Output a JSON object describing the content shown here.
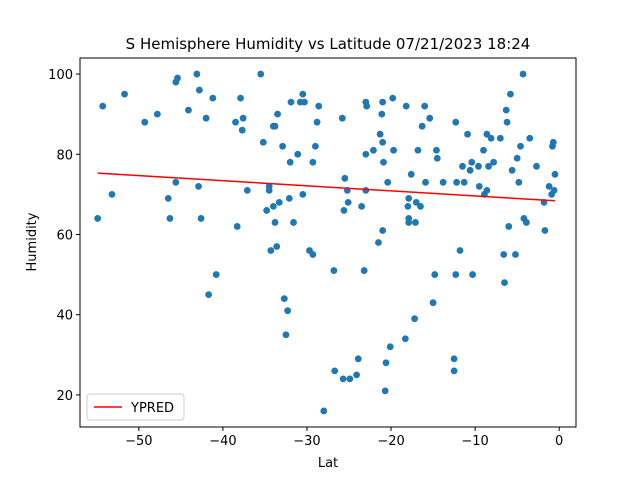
{
  "chart_data": {
    "type": "scatter",
    "title": "S Hemisphere Humidity vs Latitude 07/21/2023 18:24",
    "xlabel": "Lat",
    "ylabel": "Humidity",
    "xlim": [
      -57,
      2
    ],
    "ylim": [
      12,
      104
    ],
    "xticks": [
      -50,
      -40,
      -30,
      -20,
      -10,
      0
    ],
    "yticks": [
      20,
      40,
      60,
      80,
      100
    ],
    "grid": false,
    "legend": {
      "placement": "lower-left",
      "entries": [
        "YPRED"
      ]
    },
    "colors": {
      "points": "#1f77b4",
      "line": "#ff0000",
      "axis": "#000000"
    },
    "series": [
      {
        "kind": "points",
        "points": [
          [
            -54.9,
            64
          ],
          [
            -54.3,
            92
          ],
          [
            -53.2,
            70
          ],
          [
            -51.7,
            95
          ],
          [
            -49.3,
            88
          ],
          [
            -47.8,
            90
          ],
          [
            -46.5,
            69
          ],
          [
            -46.3,
            64
          ],
          [
            -45.6,
            98
          ],
          [
            -45.4,
            99
          ],
          [
            -45.6,
            73
          ],
          [
            -44.1,
            91
          ],
          [
            -43.1,
            100
          ],
          [
            -42.8,
            96
          ],
          [
            -42.9,
            72
          ],
          [
            -42.6,
            64
          ],
          [
            -42.0,
            89
          ],
          [
            -41.7,
            45
          ],
          [
            -41.2,
            94
          ],
          [
            -40.8,
            50
          ],
          [
            -38.5,
            88
          ],
          [
            -38.3,
            62
          ],
          [
            -37.9,
            94
          ],
          [
            -37.7,
            86
          ],
          [
            -37.6,
            89
          ],
          [
            -37.1,
            71
          ],
          [
            -35.5,
            100
          ],
          [
            -35.2,
            83
          ],
          [
            -34.8,
            66
          ],
          [
            -34.5,
            72
          ],
          [
            -34.5,
            71
          ],
          [
            -34.3,
            56
          ],
          [
            -34.0,
            87
          ],
          [
            -33.8,
            87
          ],
          [
            -34.0,
            67
          ],
          [
            -33.8,
            63
          ],
          [
            -33.6,
            57
          ],
          [
            -33.5,
            90
          ],
          [
            -33.3,
            68
          ],
          [
            -32.9,
            82
          ],
          [
            -32.7,
            44
          ],
          [
            -32.5,
            35
          ],
          [
            -32.3,
            41
          ],
          [
            -32.1,
            69
          ],
          [
            -32.0,
            78
          ],
          [
            -31.9,
            93
          ],
          [
            -31.6,
            63
          ],
          [
            -31.1,
            80
          ],
          [
            -30.8,
            93
          ],
          [
            -30.5,
            95
          ],
          [
            -30.5,
            70
          ],
          [
            -30.3,
            93
          ],
          [
            -29.7,
            56
          ],
          [
            -29.3,
            55
          ],
          [
            -29.3,
            78
          ],
          [
            -29.0,
            82
          ],
          [
            -28.8,
            88
          ],
          [
            -28.6,
            92
          ],
          [
            -28.0,
            16
          ],
          [
            -26.8,
            51
          ],
          [
            -26.7,
            26
          ],
          [
            -25.8,
            89
          ],
          [
            -25.7,
            24
          ],
          [
            -25.6,
            66
          ],
          [
            -25.5,
            74
          ],
          [
            -25.2,
            71
          ],
          [
            -25.1,
            68
          ],
          [
            -24.9,
            24
          ],
          [
            -24.1,
            25
          ],
          [
            -23.9,
            29
          ],
          [
            -23.5,
            67
          ],
          [
            -23.2,
            51
          ],
          [
            -23.0,
            93
          ],
          [
            -22.9,
            92
          ],
          [
            -23.0,
            80
          ],
          [
            -23.0,
            71
          ],
          [
            -22.1,
            81
          ],
          [
            -21.5,
            58
          ],
          [
            -21.3,
            85
          ],
          [
            -21.1,
            90
          ],
          [
            -21.0,
            93
          ],
          [
            -20.9,
            78
          ],
          [
            -21.0,
            83
          ],
          [
            -21.0,
            61
          ],
          [
            -20.6,
            28
          ],
          [
            -20.7,
            21
          ],
          [
            -20.4,
            73
          ],
          [
            -20.1,
            32
          ],
          [
            -19.8,
            94
          ],
          [
            -19.7,
            81
          ],
          [
            -18.3,
            34
          ],
          [
            -18.2,
            92
          ],
          [
            -18.0,
            67
          ],
          [
            -17.9,
            69
          ],
          [
            -17.9,
            64
          ],
          [
            -17.9,
            63
          ],
          [
            -17.6,
            75
          ],
          [
            -17.2,
            39
          ],
          [
            -17.1,
            63
          ],
          [
            -17.0,
            68
          ],
          [
            -16.8,
            81
          ],
          [
            -16.5,
            67
          ],
          [
            -16.3,
            87
          ],
          [
            -16.0,
            92
          ],
          [
            -15.9,
            73
          ],
          [
            -15.4,
            89
          ],
          [
            -15.0,
            43
          ],
          [
            -14.8,
            50
          ],
          [
            -14.6,
            81
          ],
          [
            -14.5,
            79
          ],
          [
            -13.8,
            73
          ],
          [
            -12.5,
            29
          ],
          [
            -12.5,
            26
          ],
          [
            -12.3,
            50
          ],
          [
            -12.2,
            73
          ],
          [
            -12.3,
            88
          ],
          [
            -11.8,
            56
          ],
          [
            -11.5,
            77
          ],
          [
            -11.3,
            73
          ],
          [
            -10.9,
            85
          ],
          [
            -10.6,
            76
          ],
          [
            -10.4,
            78
          ],
          [
            -10.3,
            50
          ],
          [
            -9.6,
            77
          ],
          [
            -9.5,
            72
          ],
          [
            -9.0,
            81
          ],
          [
            -8.9,
            70
          ],
          [
            -8.6,
            85
          ],
          [
            -8.6,
            71
          ],
          [
            -8.4,
            77
          ],
          [
            -8.1,
            84
          ],
          [
            -7.8,
            78
          ],
          [
            -7.0,
            84
          ],
          [
            -6.6,
            55
          ],
          [
            -6.5,
            48
          ],
          [
            -6.3,
            91
          ],
          [
            -6.2,
            88
          ],
          [
            -6.0,
            62
          ],
          [
            -5.8,
            95
          ],
          [
            -5.6,
            76
          ],
          [
            -5.2,
            55
          ],
          [
            -5.0,
            79
          ],
          [
            -4.8,
            73
          ],
          [
            -4.6,
            82
          ],
          [
            -4.3,
            100
          ],
          [
            -4.2,
            64
          ],
          [
            -3.9,
            63
          ],
          [
            -3.5,
            84
          ],
          [
            -2.7,
            77
          ],
          [
            -1.8,
            68
          ],
          [
            -1.7,
            61
          ],
          [
            -1.2,
            72
          ],
          [
            -0.9,
            70
          ],
          [
            -0.8,
            82
          ],
          [
            -0.7,
            83
          ],
          [
            -0.6,
            71
          ],
          [
            -0.5,
            75
          ]
        ]
      },
      {
        "kind": "line",
        "name": "YPRED",
        "x": [
          -54.9,
          -0.5
        ],
        "y": [
          75.3,
          68.4
        ]
      }
    ]
  }
}
